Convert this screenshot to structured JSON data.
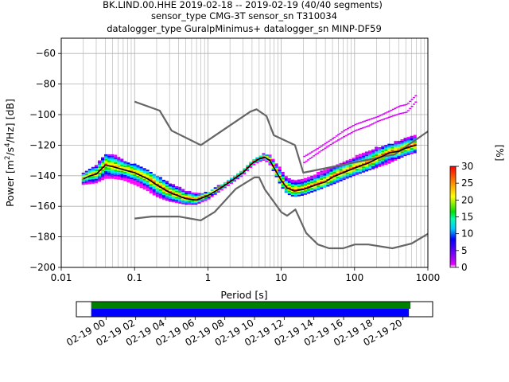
{
  "chart_data": {
    "type": "heatmap",
    "title_lines": [
      "BK.LIND.00.HHE   2019-02-18 -- 2019-02-19  (40/40 segments)",
      "sensor_type CMG-3T sensor_sn T310034",
      "datalogger_type GuralpMinimus+ datalogger_sn MINP-DF59"
    ],
    "xlabel": "Period [s]",
    "ylabel_main": "Power [m",
    "ylabel_sup1": "2",
    "ylabel_mid": "/s",
    "ylabel_sup2": "4",
    "ylabel_tail": "/Hz] [dB]",
    "x_scale": "log",
    "xlim": [
      0.01,
      1000
    ],
    "ylim": [
      -200,
      -50
    ],
    "grid": true,
    "x_ticks": [
      {
        "value": 0.01,
        "label": "0.01"
      },
      {
        "value": 0.1,
        "label": "0.1"
      },
      {
        "value": 1,
        "label": "1"
      },
      {
        "value": 10,
        "label": "10"
      },
      {
        "value": 100,
        "label": "100"
      },
      {
        "value": 1000,
        "label": "1000"
      }
    ],
    "y_ticks": [
      -200,
      -180,
      -160,
      -140,
      -120,
      -100,
      -80,
      -60
    ],
    "colorbar": {
      "label": "[%]",
      "range": [
        0,
        30
      ],
      "ticks": [
        0,
        5,
        10,
        15,
        20,
        25,
        30
      ]
    },
    "series": [
      {
        "role": "new-high-noise-model",
        "color": "#666666",
        "x": [
          0.1,
          0.22,
          0.32,
          0.8,
          3.8,
          4.6,
          6.3,
          7.9,
          15.4,
          20,
          354.8,
          1000
        ],
        "y": [
          -91.5,
          -97.4,
          -110.5,
          -120,
          -98,
          -96.5,
          -101,
          -113.5,
          -120,
          -138,
          -126,
          -111
        ]
      },
      {
        "role": "new-low-noise-model",
        "color": "#666666",
        "x": [
          0.1,
          0.17,
          0.4,
          0.8,
          1.24,
          2.4,
          4.3,
          5,
          6,
          10,
          12,
          15.6,
          21.9,
          31.6,
          45,
          70,
          101,
          154,
          328,
          600,
          1000
        ],
        "y": [
          -168,
          -166.7,
          -166.7,
          -169.2,
          -163.7,
          -148.6,
          -141.1,
          -141.1,
          -149,
          -163.8,
          -166.2,
          -162.1,
          -177.5,
          -185,
          -187.5,
          -187.5,
          -185,
          -185,
          -187.5,
          -184.4,
          -178
        ]
      },
      {
        "role": "median",
        "color": "#000000",
        "x": [
          0.02,
          0.025,
          0.03,
          0.04,
          0.05,
          0.07,
          0.1,
          0.15,
          0.2,
          0.3,
          0.5,
          0.7,
          1,
          1.5,
          2,
          3,
          4,
          5,
          6,
          7,
          8,
          10,
          12,
          15,
          20,
          30,
          40,
          50,
          70,
          100,
          150,
          200,
          300,
          400,
          500,
          700
        ],
        "y": [
          -142,
          -140,
          -139,
          -133,
          -134,
          -136,
          -138,
          -142,
          -146,
          -151,
          -155,
          -156,
          -153,
          -148,
          -144,
          -138,
          -132,
          -129,
          -128,
          -130,
          -135,
          -143,
          -148,
          -150,
          -149,
          -146,
          -144,
          -141,
          -138,
          -135,
          -132,
          -129,
          -125,
          -124,
          -122,
          -120
        ]
      }
    ],
    "pdf_band": {
      "x": [
        0.02,
        0.03,
        0.04,
        0.05,
        0.07,
        0.1,
        0.15,
        0.2,
        0.3,
        0.5,
        0.7,
        1,
        1.5,
        2,
        3,
        4,
        5,
        6,
        7,
        8,
        10,
        12,
        15,
        20,
        30,
        50,
        70,
        100,
        150,
        200,
        300,
        500,
        700
      ],
      "upper": [
        -138,
        -133,
        -126,
        -126,
        -130,
        -133,
        -136,
        -140,
        -145,
        -150,
        -152,
        -151,
        -146,
        -143,
        -136,
        -130,
        -127,
        -126,
        -127,
        -130,
        -136,
        -141,
        -143,
        -143,
        -139,
        -134,
        -131,
        -128,
        -124,
        -122,
        -120,
        -115,
        -114
      ],
      "lower": [
        -146,
        -145,
        -142,
        -142,
        -143,
        -146,
        -150,
        -154,
        -157,
        -159,
        -159,
        -156,
        -150,
        -146,
        -140,
        -134,
        -131,
        -130,
        -133,
        -138,
        -147,
        -152,
        -154,
        -153,
        -150,
        -146,
        -143,
        -140,
        -137,
        -135,
        -132,
        -127,
        -125
      ]
    },
    "upper_streaks": {
      "x": [
        20,
        30,
        50,
        70,
        100,
        150,
        200,
        300,
        400,
        500,
        700
      ],
      "y1": [
        -127,
        -122,
        -115,
        -110,
        -106,
        -103,
        -101,
        -97,
        -94,
        -93,
        -86
      ],
      "y2": [
        -131,
        -125,
        -118,
        -114,
        -110,
        -107,
        -104,
        -101,
        -99,
        -98,
        -90
      ]
    },
    "timeline": {
      "tick_labels": [
        "02-19 00",
        "02-19 02",
        "02-19 04",
        "02-19 06",
        "02-19 08",
        "02-19 10",
        "02-19 12",
        "02-19 14",
        "02-19 16",
        "02-19 18",
        "02-19 20"
      ],
      "range_hours": [
        -2,
        22
      ],
      "coverage_hours": [
        -1,
        20.4
      ],
      "bar_colors": [
        "#008000",
        "#0000ff"
      ]
    }
  }
}
